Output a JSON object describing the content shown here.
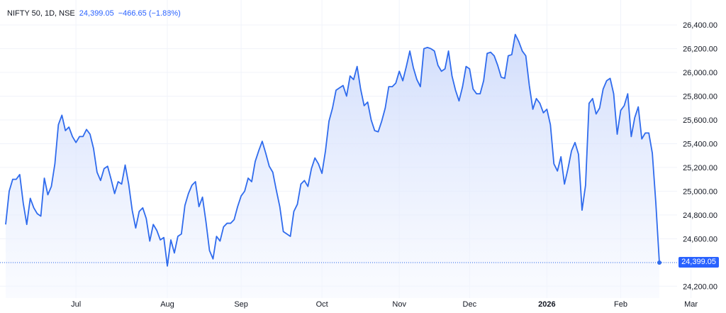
{
  "header": {
    "symbol": "NIFTY 50, 1D, NSE",
    "last": "24,399.05",
    "change": "−466.65 (−1.88%)"
  },
  "price_label": "24,399.05",
  "colors": {
    "line": "#2f6bed",
    "area_top": "#c9d7fb",
    "area_bottom": "#f4f7ff",
    "grid": "#f0f3fa",
    "text": "#131722",
    "axis_text": "#131722"
  },
  "chart_data": {
    "type": "area",
    "title": "",
    "xlabel": "",
    "ylabel": "",
    "ylim": [
      24100,
      26550
    ],
    "yticks": [
      {
        "v": 24200,
        "label": "24,200.00"
      },
      {
        "v": 24400,
        "label": "24,400.00"
      },
      {
        "v": 24600,
        "label": "24,600.00"
      },
      {
        "v": 24800,
        "label": "24,800.00"
      },
      {
        "v": 25000,
        "label": "25,000.00"
      },
      {
        "v": 25200,
        "label": "25,200.00"
      },
      {
        "v": 25400,
        "label": "25,400.00"
      },
      {
        "v": 25600,
        "label": "25,600.00"
      },
      {
        "v": 25800,
        "label": "25,800.00"
      },
      {
        "v": 26000,
        "label": "26,000.00"
      },
      {
        "v": 26200,
        "label": "26,200.00"
      },
      {
        "v": 26400,
        "label": "26,400.00"
      }
    ],
    "xticks": [
      {
        "i": 20,
        "label": "Jul",
        "bold": false
      },
      {
        "i": 46,
        "label": "Aug",
        "bold": false
      },
      {
        "i": 67,
        "label": "Sep",
        "bold": false
      },
      {
        "i": 90,
        "label": "Oct",
        "bold": false
      },
      {
        "i": 112,
        "label": "Nov",
        "bold": false
      },
      {
        "i": 132,
        "label": "Dec",
        "bold": false
      },
      {
        "i": 154,
        "label": "2026",
        "bold": true
      },
      {
        "i": 175,
        "label": "Feb",
        "bold": false
      },
      {
        "i": 195,
        "label": "Mar",
        "bold": false
      }
    ],
    "last_value": 24399.05,
    "series": [
      {
        "values": [
          24720,
          25000,
          25100,
          25100,
          25140,
          24900,
          24720,
          24940,
          24860,
          24810,
          24790,
          25110,
          24970,
          25040,
          25230,
          25560,
          25640,
          25510,
          25540,
          25460,
          25410,
          25460,
          25460,
          25520,
          25480,
          25360,
          25160,
          25090,
          25190,
          25210,
          25100,
          24980,
          25080,
          25060,
          25220,
          25060,
          24840,
          24690,
          24830,
          24860,
          24770,
          24580,
          24720,
          24670,
          24590,
          24610,
          24370,
          24590,
          24480,
          24620,
          24640,
          24880,
          24980,
          25050,
          25080,
          24870,
          24950,
          24740,
          24500,
          24430,
          24620,
          24580,
          24700,
          24730,
          24730,
          24760,
          24870,
          24960,
          25000,
          25110,
          25080,
          25250,
          25340,
          25420,
          25320,
          25210,
          25160,
          25010,
          24870,
          24660,
          24640,
          24620,
          24830,
          24890,
          25060,
          25090,
          25040,
          25190,
          25280,
          25230,
          25150,
          25340,
          25590,
          25700,
          25850,
          25870,
          25890,
          25800,
          25970,
          25940,
          26050,
          25860,
          25720,
          25750,
          25600,
          25510,
          25500,
          25590,
          25700,
          25880,
          25880,
          25910,
          26010,
          25930,
          26050,
          26180,
          26040,
          25940,
          25880,
          26200,
          26210,
          26200,
          26180,
          26060,
          26010,
          26030,
          26180,
          25970,
          25850,
          25760,
          25880,
          26050,
          26030,
          25860,
          25820,
          25820,
          25930,
          26160,
          26170,
          26140,
          26060,
          25960,
          25950,
          26140,
          26150,
          26320,
          26260,
          26180,
          26140,
          25890,
          25690,
          25780,
          25740,
          25660,
          25690,
          25560,
          25230,
          25170,
          25290,
          25060,
          25190,
          25340,
          25410,
          25310,
          24840,
          25050,
          25740,
          25780,
          25650,
          25700,
          25860,
          25930,
          25950,
          25820,
          25480,
          25680,
          25720,
          25820,
          25460,
          25620,
          25710,
          25440,
          25490,
          25490,
          25320,
          24900,
          24399.05
        ]
      }
    ]
  }
}
